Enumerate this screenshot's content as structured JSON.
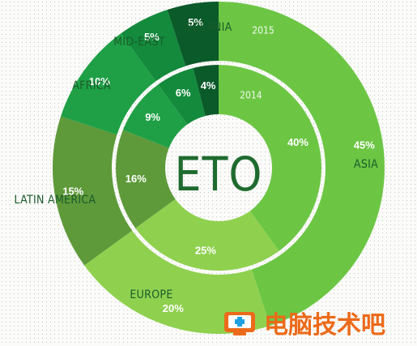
{
  "chart_data": {
    "type": "donut",
    "title": "ETO",
    "categories": [
      "Asia",
      "Europe",
      "Latin America",
      "Africa",
      "Mid-East",
      "Oceania"
    ],
    "category_labels": [
      "ASIA",
      "EUROPE",
      "LATIN AMERICA",
      "AFRICA",
      "MID-EAST",
      "OCEANIA"
    ],
    "series": [
      {
        "name": "2015",
        "ring": "outer",
        "values": [
          45,
          20,
          15,
          10,
          5,
          5
        ]
      },
      {
        "name": "2014",
        "ring": "inner",
        "values": [
          40,
          25,
          16,
          9,
          6,
          4
        ]
      }
    ],
    "colors": [
      "#6cc644",
      "#8fd14f",
      "#5e9a3a",
      "#1fa046",
      "#138a3c",
      "#0b5a2a"
    ],
    "unit": "%"
  },
  "watermark": {
    "text": "电脑技术吧",
    "icon": "computer-medical-icon",
    "color": "#ec6a1a"
  }
}
